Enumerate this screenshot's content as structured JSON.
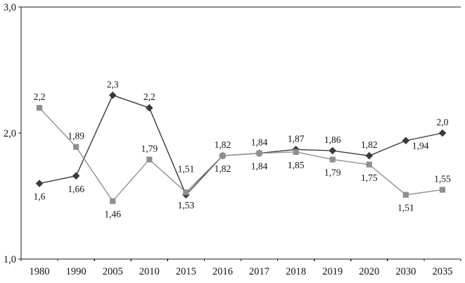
{
  "chart_data": {
    "type": "line",
    "title": "",
    "xlabel": "",
    "ylabel": "",
    "grid": false,
    "legend": "none",
    "ylim": [
      1.0,
      3.0
    ],
    "yticks": [
      {
        "value": 1.0,
        "label": "1,0"
      },
      {
        "value": 2.0,
        "label": "2,0"
      },
      {
        "value": 3.0,
        "label": "3,0"
      }
    ],
    "categories": [
      "1980",
      "1990",
      "2005",
      "2010",
      "2015",
      "2016",
      "2017",
      "2018",
      "2019",
      "2020",
      "2030",
      "2035"
    ],
    "series": [
      {
        "name": "diamond-marker-series",
        "marker": "diamond",
        "color": "#3a3a3a",
        "values": [
          1.6,
          1.66,
          2.3,
          2.2,
          1.51,
          1.82,
          1.84,
          1.87,
          1.86,
          1.82,
          1.94,
          2.0
        ],
        "labels": [
          "1,6",
          "1,66",
          "2,3",
          "2,2",
          "1,51",
          "1,82",
          "1,84",
          "1,87",
          "1,86",
          "1,82",
          "1,94",
          "2,0"
        ],
        "label_positions": [
          "below",
          "below",
          "above",
          "above",
          "above-far",
          "above",
          "above",
          "above",
          "above",
          "above",
          "right",
          "above"
        ]
      },
      {
        "name": "square-marker-series",
        "marker": "square",
        "color": "#8f8f8f",
        "values": [
          2.2,
          1.89,
          1.46,
          1.79,
          1.53,
          1.82,
          1.84,
          1.85,
          1.79,
          1.75,
          1.51,
          1.55
        ],
        "labels": [
          "2,2",
          "1,89",
          "1,46",
          "1,79",
          "1,53",
          "1,82",
          "1,84",
          "1,85",
          "1,79",
          "1,75",
          "1,51",
          "1,55"
        ],
        "label_positions": [
          "above",
          "above",
          "below",
          "above",
          "below",
          "below",
          "below",
          "below",
          "below",
          "below",
          "below",
          "above"
        ]
      }
    ],
    "axis_color": "#1a1a1a",
    "label_color": "#111111"
  }
}
